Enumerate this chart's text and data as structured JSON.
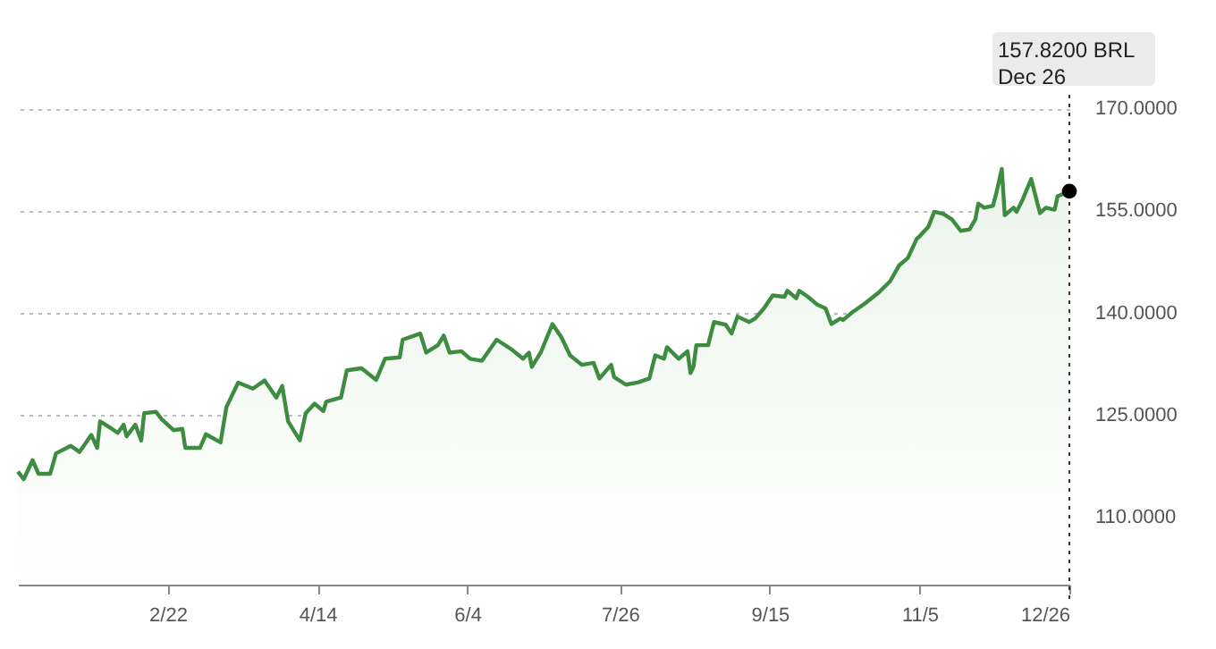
{
  "chart_data": {
    "type": "area",
    "x": [
      "--01-02",
      "--01-04",
      "--01-07",
      "--01-09",
      "--01-13",
      "--01-15",
      "--01-20",
      "--01-23",
      "--01-27",
      "--01-29",
      "--01-30",
      "--02-03",
      "--02-05",
      "--02-07",
      "--02-08",
      "--02-11",
      "--02-13",
      "--02-14",
      "--02-18",
      "--02-20",
      "--02-24",
      "--02-27",
      "--02-28",
      "--03-05",
      "--03-07",
      "--03-12",
      "--03-14",
      "--03-18",
      "--03-23",
      "--03-27",
      "--03-31",
      "--04-02",
      "--04-04",
      "--04-08",
      "--04-10",
      "--04-13",
      "--04-16",
      "--04-17",
      "--04-22",
      "--04-24",
      "--04-29",
      "--05-04",
      "--05-07",
      "--05-12",
      "--05-13",
      "--05-19",
      "--05-21",
      "--05-25",
      "--05-27",
      "--05-29",
      "--06-02",
      "--06-05",
      "--06-09",
      "--06-14",
      "--06-19",
      "--06-23",
      "--06-25",
      "--06-26",
      "--06-29",
      "--07-03",
      "--07-06",
      "--07-09",
      "--07-13",
      "--07-17",
      "--07-19",
      "--07-23",
      "--07-24",
      "--07-28",
      "--08-01",
      "--08-05",
      "--08-07",
      "--08-10",
      "--08-11",
      "--08-15",
      "--08-18",
      "--08-19",
      "--08-20",
      "--08-21",
      "--08-25",
      "--08-27",
      "--08-31",
      "--09-02",
      "--09-04",
      "--09-08",
      "--09-10",
      "--09-13",
      "--09-16",
      "--09-20",
      "--09-21",
      "--09-24",
      "--09-25",
      "--09-28",
      "--10-01",
      "--10-04",
      "--10-06",
      "--10-09",
      "--10-10",
      "--10-13",
      "--10-15",
      "--10-17",
      "--10-22",
      "--10-26",
      "--10-29",
      "--11-01",
      "--11-04",
      "--11-05",
      "--11-08",
      "--11-10",
      "--11-13",
      "--11-16",
      "--11-19",
      "--11-22",
      "--11-24",
      "--11-25",
      "--11-27",
      "--11-30",
      "--12-01",
      "--12-03",
      "--12-04",
      "--12-07",
      "--12-08",
      "--12-10",
      "--12-13",
      "--12-16",
      "--12-18",
      "--12-21",
      "--12-22",
      "--12-26"
    ],
    "series": [
      {
        "color": "#3d8c40",
        "values": [
          116.6,
          115.5,
          118.3,
          116.3,
          116.3,
          119.3,
          120.4,
          119.5,
          122.0,
          120.1,
          124.0,
          122.9,
          122.3,
          123.5,
          121.8,
          123.5,
          121.2,
          125.2,
          125.4,
          124.3,
          122.7,
          122.9,
          120.1,
          120.1,
          122.1,
          120.9,
          126.1,
          129.7,
          128.8,
          130.0,
          127.5,
          129.2,
          124.0,
          121.2,
          125.2,
          126.6,
          125.5,
          126.9,
          127.5,
          131.5,
          131.8,
          130.1,
          133.2,
          133.4,
          136.0,
          136.9,
          134.1,
          135.2,
          136.6,
          134.1,
          134.3,
          133.2,
          132.9,
          136.0,
          134.6,
          133.2,
          134.1,
          132.0,
          134.1,
          138.3,
          136.4,
          133.7,
          132.3,
          132.6,
          130.3,
          132.3,
          130.5,
          129.4,
          129.7,
          130.3,
          133.7,
          133.2,
          134.9,
          133.2,
          134.3,
          131.1,
          132.0,
          135.2,
          135.2,
          138.6,
          138.2,
          136.9,
          139.4,
          138.6,
          139.1,
          140.6,
          142.5,
          142.3,
          143.2,
          142.1,
          143.2,
          142.3,
          141.2,
          140.6,
          138.3,
          139.1,
          138.9,
          140.0,
          140.6,
          141.2,
          142.9,
          144.6,
          146.9,
          148.0,
          150.8,
          151.2,
          152.6,
          154.8,
          154.5,
          153.7,
          152.0,
          152.2,
          153.7,
          156.0,
          155.4,
          155.7,
          157.3,
          161.1,
          154.3,
          155.4,
          154.8,
          156.5,
          159.6,
          154.6,
          155.4,
          155.1,
          157.1,
          157.82
        ]
      }
    ],
    "xlim": [
      "--01-02",
      "--12-26"
    ],
    "xticks": [
      {
        "value": "--02-22",
        "label": "2/22"
      },
      {
        "value": "--04-14",
        "label": "4/14"
      },
      {
        "value": "--06-04",
        "label": "6/4"
      },
      {
        "value": "--07-26",
        "label": "7/26"
      },
      {
        "value": "--09-15",
        "label": "9/15"
      },
      {
        "value": "--11-05",
        "label": "11/5"
      },
      {
        "value": "--12-26",
        "label": "12/26"
      }
    ],
    "ylim": [
      100,
      172
    ],
    "yticks": [
      {
        "value": 110,
        "label": "110.0000"
      },
      {
        "value": 125,
        "label": "125.0000"
      },
      {
        "value": 140,
        "label": "140.0000"
      },
      {
        "value": 155,
        "label": "155.0000"
      },
      {
        "value": 170,
        "label": "170.0000"
      }
    ],
    "grid": "y",
    "ref_lines": [
      {
        "axis": "x",
        "value": "--12-26",
        "color": "#333333",
        "line_style": "dotted"
      }
    ],
    "annotations": [
      "157.8200 BRL",
      "Dec 26"
    ]
  }
}
